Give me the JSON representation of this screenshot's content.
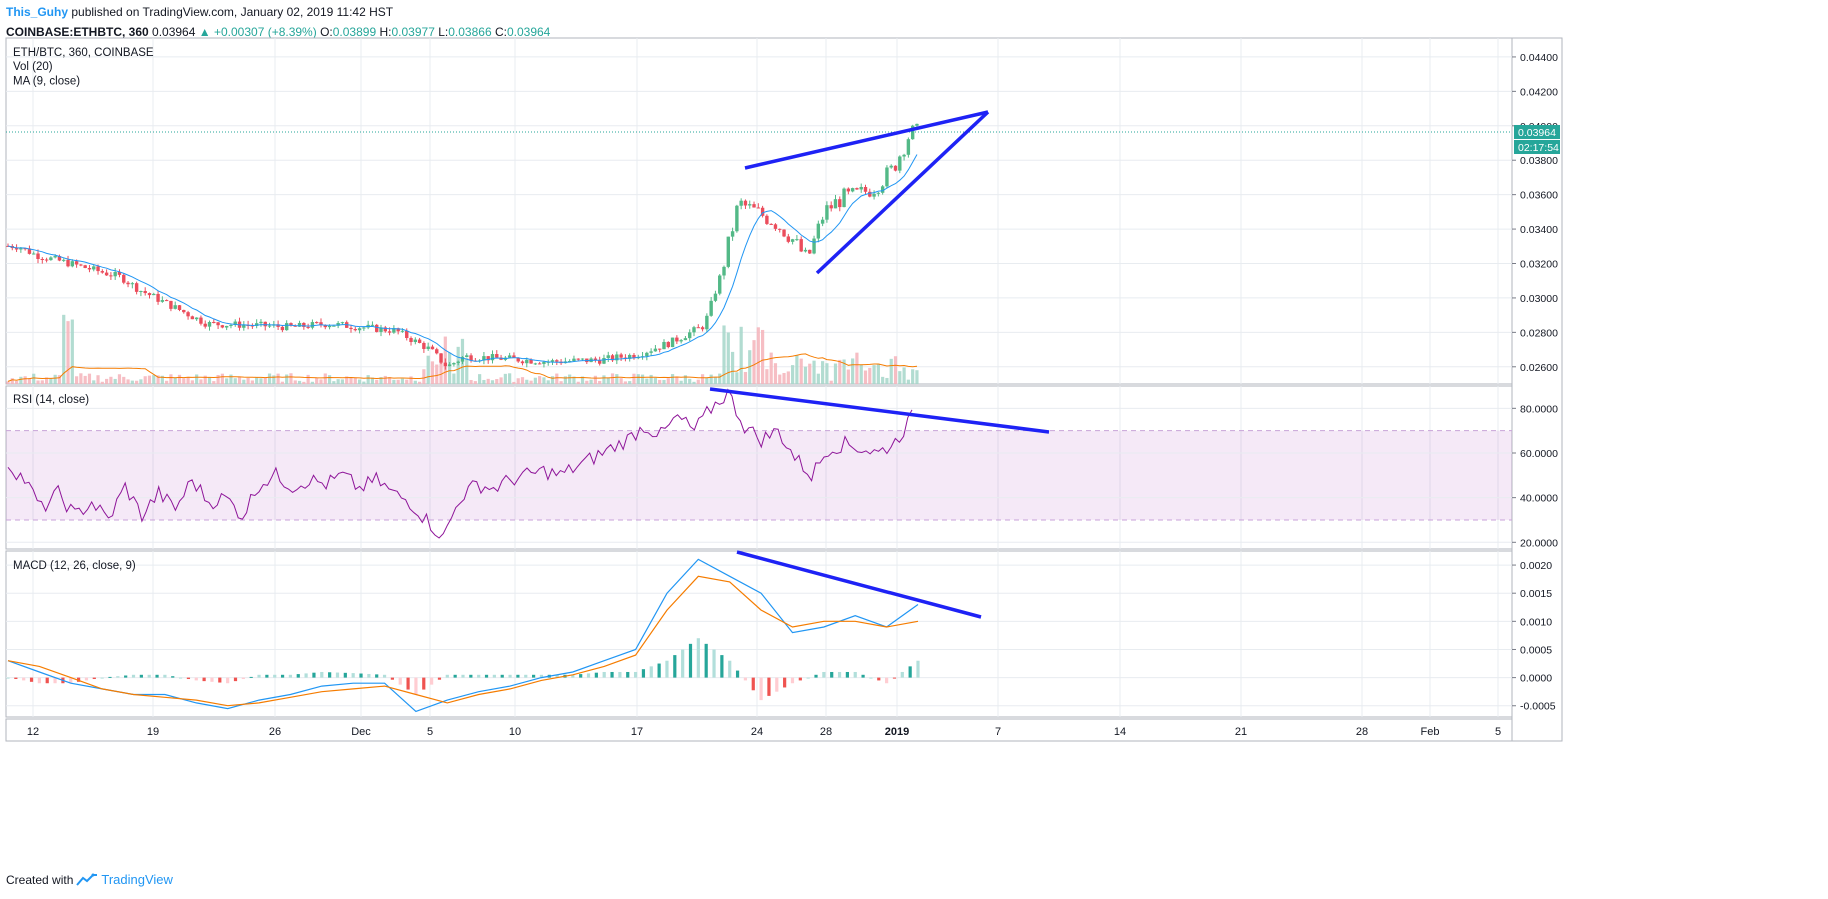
{
  "header": {
    "author": "This_Guhy",
    "published_text": " published on TradingView.com, January 02, 2019 11:42 HST",
    "symbol_line": "COINBASE:ETHBTC, 360",
    "price": "0.03964",
    "change": "▲ +0.00307 (+8.39%)",
    "o_label": "O:",
    "o_value": "0.03899",
    "h_label": "H:",
    "h_value": "0.03977",
    "l_label": "L:",
    "l_value": "0.03866",
    "c_label": "C:",
    "c_value": "0.03964"
  },
  "footer": {
    "created_with": "Created with",
    "brand": "TradingView"
  },
  "colors": {
    "up": "#26a69a",
    "up_fill": "#53b987",
    "down": "#eb4d5c",
    "ma": "#2196f3",
    "vol_ma": "#f57c00",
    "rsi": "#8e1599",
    "macd": "#2196f3",
    "signal": "#f57c00",
    "drawing": "#1e22f5",
    "grid": "#e8ecf0"
  },
  "chart_data": [
    {
      "type": "candlestick",
      "title": "ETH/BTC, 360, COINBASE",
      "legend": [
        "Vol (20)",
        "MA (9, close)"
      ],
      "x_ticks": [
        "12",
        "19",
        "26",
        "Dec",
        "5",
        "10",
        "17",
        "24",
        "28",
        "2019",
        "7",
        "14",
        "21",
        "28",
        "Feb",
        "5"
      ],
      "y_ticks": [
        "0.04400",
        "0.04200",
        "0.04000",
        "0.03800",
        "0.03600",
        "0.03400",
        "0.03200",
        "0.03000",
        "0.02800",
        "0.02600"
      ],
      "ylim": [
        0.025,
        0.0451
      ],
      "last_price_label": "0.03964",
      "countdown_label": "02:17:54",
      "approx_close_path": [
        [
          "Nov 9",
          0.0331
        ],
        [
          "Nov 12",
          0.033
        ],
        [
          "Nov 13",
          0.0325
        ],
        [
          "Nov 15",
          0.032
        ],
        [
          "Nov 18",
          0.0312
        ],
        [
          "Nov 19",
          0.0305
        ],
        [
          "Nov 21",
          0.0295
        ],
        [
          "Nov 23",
          0.0285
        ],
        [
          "Nov 26",
          0.0284
        ],
        [
          "Nov 28",
          0.0283
        ],
        [
          "Nov 30",
          0.0285
        ],
        [
          "Dec 1",
          0.0283
        ],
        [
          "Dec 3",
          0.0281
        ],
        [
          "Dec 5",
          0.027
        ],
        [
          "Dec 6",
          0.026
        ],
        [
          "Dec 7",
          0.0266
        ],
        [
          "Dec 9",
          0.0265
        ],
        [
          "Dec 12",
          0.0263
        ],
        [
          "Dec 15",
          0.0264
        ],
        [
          "Dec 17",
          0.0267
        ],
        [
          "Dec 19",
          0.0274
        ],
        [
          "Dec 21",
          0.0284
        ],
        [
          "Dec 22",
          0.0315
        ],
        [
          "Dec 23",
          0.0355
        ],
        [
          "Dec 24",
          0.035
        ],
        [
          "Dec 25",
          0.0345
        ],
        [
          "Dec 26",
          0.0336
        ],
        [
          "Dec 27",
          0.0322
        ],
        [
          "Dec 28",
          0.035
        ],
        [
          "Dec 29",
          0.0358
        ],
        [
          "Dec 30",
          0.036
        ],
        [
          "Dec 31",
          0.0365
        ],
        [
          "Jan 1",
          0.0375
        ],
        [
          "Jan 2",
          0.0396
        ]
      ]
    },
    {
      "type": "line",
      "title": "RSI (14, close)",
      "y_ticks": [
        "80.0000",
        "60.0000",
        "40.0000",
        "20.0000"
      ],
      "ylim": [
        17,
        90
      ],
      "band": [
        30,
        70
      ],
      "approx_values": [
        55,
        48,
        35,
        42,
        32,
        38,
        30,
        45,
        32,
        42,
        35,
        48,
        38,
        40,
        32,
        46,
        50,
        45,
        48,
        46,
        50,
        44,
        48,
        42,
        38,
        30,
        22,
        40,
        46,
        44,
        48,
        50,
        52,
        50,
        54,
        58,
        62,
        66,
        72,
        68,
        76,
        70,
        80,
        87,
        72,
        66,
        70,
        58,
        50,
        62,
        64,
        62,
        60,
        65,
        76
      ]
    },
    {
      "type": "line",
      "title": "MACD (12, 26, close, 9)",
      "y_ticks": [
        "0.0020",
        "0.0015",
        "0.0010",
        "0.0005",
        "0.0000",
        "-0.0005"
      ],
      "ylim": [
        -0.0007,
        0.00225
      ],
      "series": [
        {
          "name": "MACD",
          "values": [
            0.0003,
            0.0001,
            -0.0001,
            -0.0002,
            -0.0003,
            -0.0003,
            -0.00045,
            -0.00055,
            -0.0004,
            -0.0003,
            -0.00015,
            -0.0001,
            -0.0001,
            -0.0006,
            -0.0004,
            -0.00025,
            -0.00015,
            0.0,
            0.0001,
            0.0003,
            0.0005,
            0.0015,
            0.0021,
            0.0018,
            0.0015,
            0.0008,
            0.0009,
            0.0011,
            0.0009,
            0.0013
          ]
        },
        {
          "name": "Signal",
          "values": [
            0.0003,
            0.0002,
            0.0,
            -0.0002,
            -0.0003,
            -0.00035,
            -0.0004,
            -0.0005,
            -0.00045,
            -0.00035,
            -0.00025,
            -0.0002,
            -0.00015,
            -0.0003,
            -0.00045,
            -0.0003,
            -0.0002,
            -5e-05,
            5e-05,
            0.0002,
            0.0004,
            0.0012,
            0.0018,
            0.0017,
            0.0012,
            0.0009,
            0.001,
            0.001,
            0.0009,
            0.001
          ]
        }
      ],
      "histogram": [
        0.0,
        -0.0001,
        -0.0001,
        0.0,
        5e-05,
        5e-05,
        -5e-05,
        -0.0001,
        5e-05,
        5e-05,
        0.0001,
        8e-05,
        5e-05,
        -0.0003,
        5e-05,
        5e-05,
        5e-05,
        5e-05,
        5e-05,
        0.0001,
        0.0001,
        0.0003,
        0.0007,
        0.0003,
        -0.0004,
        -0.0001,
        0.0001,
        0.0001,
        -0.0001,
        0.0003
      ]
    }
  ]
}
